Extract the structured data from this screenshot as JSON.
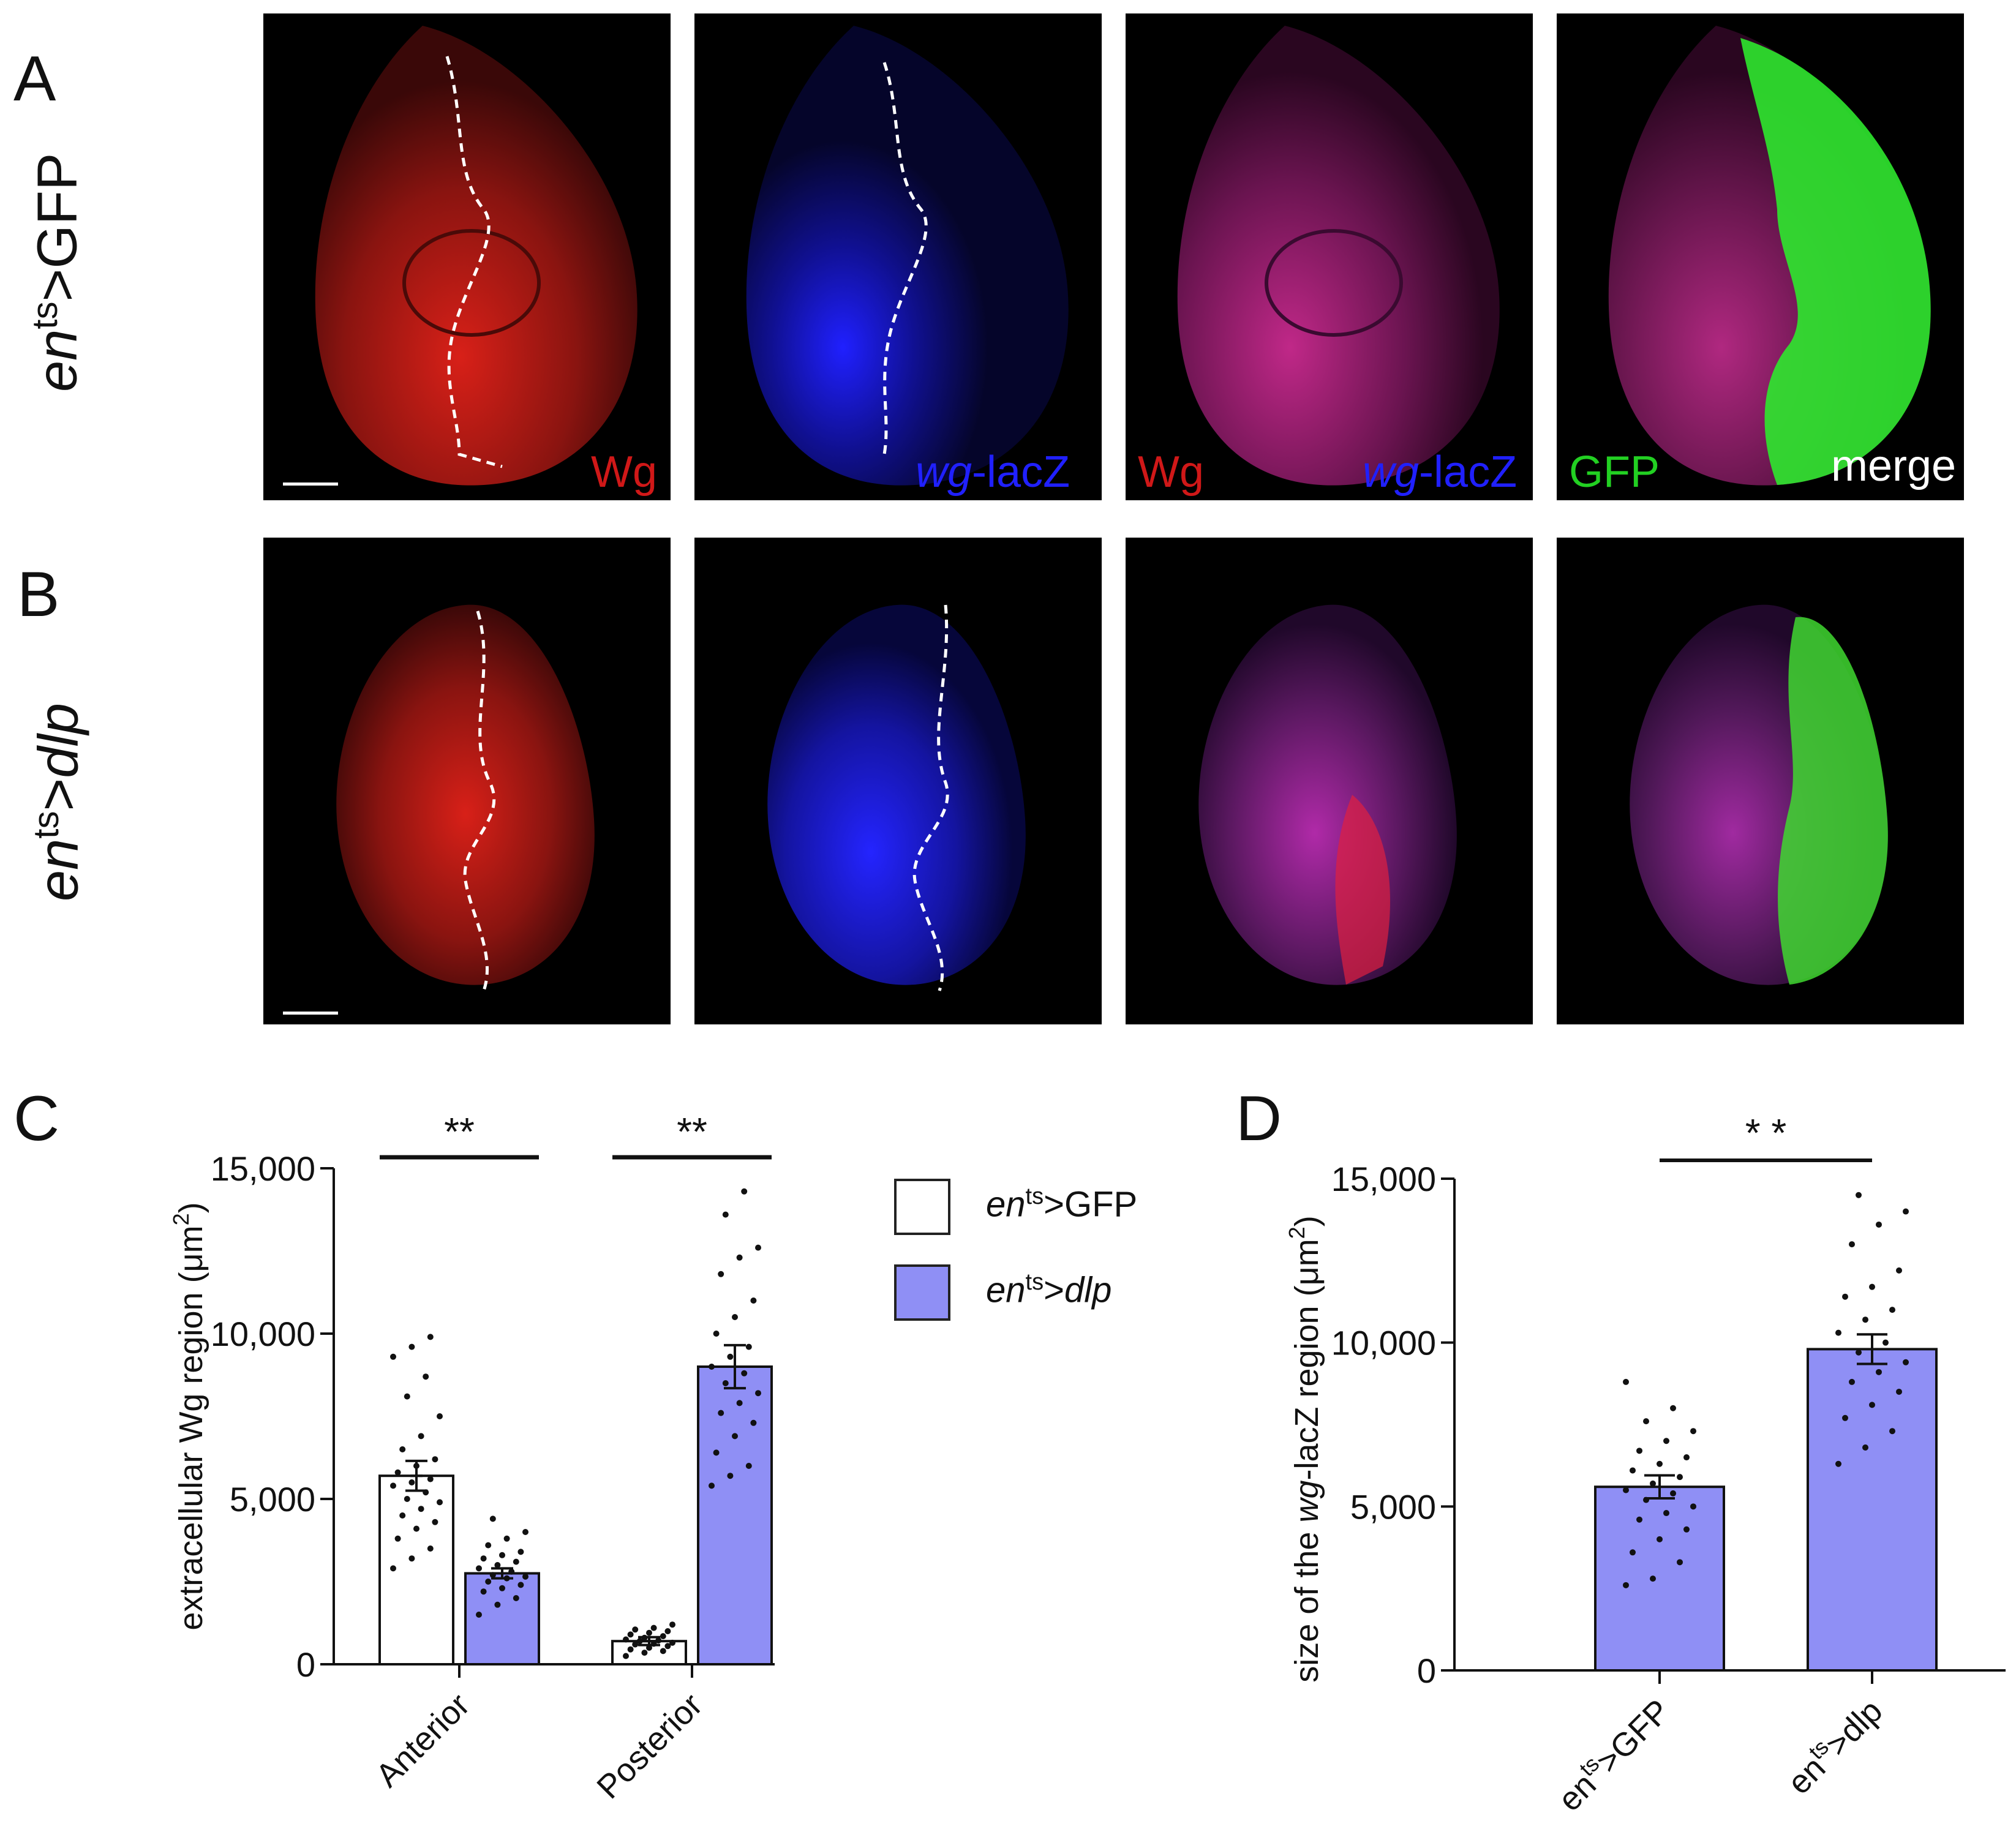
{
  "panel_labels": {
    "a": "A",
    "b": "B",
    "c": "C",
    "d": "D"
  },
  "row_a_genotype": {
    "base": "en",
    "sup": "ts",
    "rest": ">GFP"
  },
  "row_b_genotype": {
    "base": "en",
    "sup": "ts",
    "rest": ">",
    "gene": "dlp"
  },
  "channels": {
    "wg": "Wg",
    "lacz_italic": "wg",
    "lacz_rest": "-lacZ",
    "gfp": "GFP",
    "merge": "merge"
  },
  "colors": {
    "bar_dlp": "#8f8ff5",
    "bar_gfp": "#ffffff",
    "wg_red": "#e0201c",
    "lacz_blue": "#2424ff",
    "gfp_green": "#2ee82e"
  },
  "legend": {
    "items": [
      {
        "base": "en",
        "sup": "ts",
        "rest": ">GFP"
      },
      {
        "base": "en",
        "sup": "ts",
        "rest": ">",
        "gene": "dlp"
      }
    ]
  },
  "chart_data": [
    {
      "type": "bar",
      "panel": "C",
      "ylabel": "extracellular Wg region (μm²)",
      "ylabel_parts": {
        "text": "extracellular Wg region (μm",
        "sup": "2",
        "close": ")"
      },
      "ylim": [
        0,
        15000
      ],
      "yticks": [
        "0",
        "5,000",
        "10,000",
        "15,000"
      ],
      "ytick_values": [
        0,
        5000,
        10000,
        15000
      ],
      "categories": [
        "Anterior",
        "Posterior"
      ],
      "series": [
        {
          "values": [
            5700,
            700
          ],
          "sem": [
            450,
            120
          ],
          "color": "#ffffff",
          "points": [
            [
              2900,
              3200,
              3500,
              3800,
              4100,
              4300,
              4500,
              4700,
              4900,
              5000,
              5200,
              5400,
              5500,
              5600,
              5800,
              6000,
              6200,
              6500,
              6900,
              7500,
              8100,
              8700,
              9300,
              9600,
              9900
            ],
            [
              250,
              350,
              400,
              450,
              500,
              550,
              600,
              620,
              650,
              700,
              720,
              750,
              800,
              850,
              900,
              950,
              1000,
              1050,
              1100,
              1200
            ]
          ]
        },
        {
          "values": [
            2750,
            9000
          ],
          "sem": [
            150,
            650
          ],
          "color": "#8f8ff5",
          "points": [
            [
              1500,
              1800,
              2000,
              2200,
              2300,
              2400,
              2500,
              2600,
              2650,
              2700,
              2800,
              2900,
              3000,
              3100,
              3200,
              3300,
              3400,
              3600,
              3800,
              4000,
              4400
            ],
            [
              5400,
              5700,
              6000,
              6400,
              6900,
              7300,
              7600,
              7900,
              8200,
              8500,
              8800,
              9000,
              9300,
              9600,
              10000,
              10500,
              11000,
              11800,
              12300,
              12600,
              13600,
              14300
            ]
          ]
        }
      ],
      "significance": [
        "**",
        "**"
      ]
    },
    {
      "type": "bar",
      "panel": "D",
      "ylabel_parts": {
        "pre": "size of the  ",
        "italic": "wg",
        "post": "-lacZ  region  (μm",
        "sup": "2",
        "close": ")"
      },
      "ylim": [
        0,
        15000
      ],
      "yticks": [
        "0",
        "5,000",
        "10,000",
        "15,000"
      ],
      "ytick_values": [
        0,
        5000,
        10000,
        15000
      ],
      "categories": [
        "en>GFP",
        "en>dlp"
      ],
      "category_parts": [
        {
          "base": "en",
          "sup": "ts",
          "rest": ">GFP"
        },
        {
          "base": "en",
          "sup": "ts",
          "rest": ">dlp"
        }
      ],
      "values": [
        5600,
        9800
      ],
      "sem": [
        350,
        450
      ],
      "color": "#8f8ff5",
      "points": [
        [
          2600,
          2800,
          3300,
          3600,
          4000,
          4300,
          4600,
          4800,
          5000,
          5200,
          5400,
          5500,
          5700,
          5900,
          6100,
          6300,
          6500,
          6700,
          7000,
          7300,
          7600,
          8000,
          8800
        ],
        [
          6300,
          6800,
          7300,
          7700,
          8100,
          8500,
          8800,
          9100,
          9400,
          9700,
          10000,
          10300,
          10700,
          11000,
          11400,
          11700,
          12200,
          13000,
          13600,
          14000,
          14500
        ]
      ],
      "significance": "* *"
    }
  ]
}
